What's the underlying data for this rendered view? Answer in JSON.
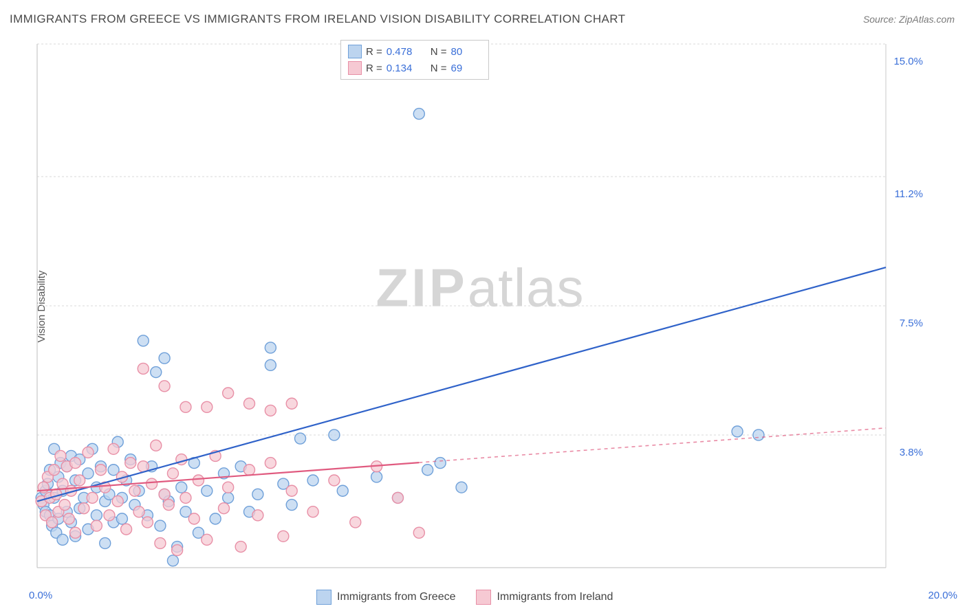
{
  "title": "IMMIGRANTS FROM GREECE VS IMMIGRANTS FROM IRELAND VISION DISABILITY CORRELATION CHART",
  "source": "Source: ZipAtlas.com",
  "ylabel": "Vision Disability",
  "watermark_bold": "ZIP",
  "watermark_rest": "atlas",
  "chart": {
    "type": "scatter-with-trendlines",
    "xlim": [
      0.0,
      20.0
    ],
    "ylim": [
      0.0,
      15.0
    ],
    "x_axis_left_label": "0.0%",
    "x_axis_right_label": "20.0%",
    "y_ticks": [
      3.8,
      7.5,
      11.2,
      15.0
    ],
    "y_tick_labels": [
      "3.8%",
      "7.5%",
      "11.2%",
      "15.0%"
    ],
    "grid_color": "#d9d9d9",
    "axis_color": "#c9c9c9",
    "label_color": "#3a6fd8",
    "background": "#ffffff",
    "marker_radius": 8,
    "marker_stroke_width": 1.4,
    "trend_width": 2.2,
    "series": [
      {
        "name": "Immigrants from Greece",
        "fill": "#bcd4ef",
        "stroke": "#6fa0d9",
        "trend_color": "#2f62c9",
        "R": "0.478",
        "N": "80",
        "trend": {
          "x1": 0.0,
          "y1": 1.9,
          "x2": 20.0,
          "y2": 8.6,
          "solid_until_x": 20.0
        },
        "points": [
          [
            0.1,
            2.0
          ],
          [
            0.15,
            1.8
          ],
          [
            0.2,
            2.2
          ],
          [
            0.2,
            1.6
          ],
          [
            0.25,
            2.4
          ],
          [
            0.3,
            1.5
          ],
          [
            0.3,
            2.8
          ],
          [
            0.35,
            1.2
          ],
          [
            0.4,
            3.4
          ],
          [
            0.4,
            2.0
          ],
          [
            0.45,
            1.0
          ],
          [
            0.5,
            2.6
          ],
          [
            0.5,
            1.4
          ],
          [
            0.55,
            3.0
          ],
          [
            0.6,
            2.2
          ],
          [
            0.6,
            0.8
          ],
          [
            0.7,
            2.9
          ],
          [
            0.7,
            1.6
          ],
          [
            0.8,
            3.2
          ],
          [
            0.8,
            1.3
          ],
          [
            0.9,
            2.5
          ],
          [
            0.9,
            0.9
          ],
          [
            1.0,
            3.1
          ],
          [
            1.0,
            1.7
          ],
          [
            1.1,
            2.0
          ],
          [
            1.2,
            2.7
          ],
          [
            1.2,
            1.1
          ],
          [
            1.3,
            3.4
          ],
          [
            1.4,
            2.3
          ],
          [
            1.4,
            1.5
          ],
          [
            1.5,
            2.9
          ],
          [
            1.6,
            1.9
          ],
          [
            1.6,
            0.7
          ],
          [
            1.7,
            2.1
          ],
          [
            1.8,
            2.8
          ],
          [
            1.8,
            1.3
          ],
          [
            1.9,
            3.6
          ],
          [
            2.0,
            2.0
          ],
          [
            2.0,
            1.4
          ],
          [
            2.1,
            2.5
          ],
          [
            2.2,
            3.1
          ],
          [
            2.3,
            1.8
          ],
          [
            2.4,
            2.2
          ],
          [
            2.5,
            6.5
          ],
          [
            2.6,
            1.5
          ],
          [
            2.7,
            2.9
          ],
          [
            2.8,
            5.6
          ],
          [
            2.9,
            1.2
          ],
          [
            3.0,
            2.1
          ],
          [
            3.0,
            6.0
          ],
          [
            3.1,
            1.9
          ],
          [
            3.2,
            0.2
          ],
          [
            3.3,
            0.6
          ],
          [
            3.4,
            2.3
          ],
          [
            3.5,
            1.6
          ],
          [
            3.7,
            3.0
          ],
          [
            3.8,
            1.0
          ],
          [
            4.0,
            2.2
          ],
          [
            4.2,
            1.4
          ],
          [
            4.4,
            2.7
          ],
          [
            4.5,
            2.0
          ],
          [
            4.8,
            2.9
          ],
          [
            5.0,
            1.6
          ],
          [
            5.2,
            2.1
          ],
          [
            5.5,
            6.3
          ],
          [
            5.5,
            5.8
          ],
          [
            5.8,
            2.4
          ],
          [
            6.0,
            1.8
          ],
          [
            6.2,
            3.7
          ],
          [
            6.5,
            2.5
          ],
          [
            7.0,
            3.8
          ],
          [
            7.2,
            2.2
          ],
          [
            8.0,
            2.6
          ],
          [
            8.5,
            2.0
          ],
          [
            9.0,
            13.0
          ],
          [
            9.2,
            2.8
          ],
          [
            9.5,
            3.0
          ],
          [
            10.0,
            2.3
          ],
          [
            16.5,
            3.9
          ],
          [
            17.0,
            3.8
          ]
        ]
      },
      {
        "name": "Immigrants from Ireland",
        "fill": "#f6c9d3",
        "stroke": "#e88fa6",
        "trend_color": "#e05a7f",
        "R": "0.134",
        "N": "69",
        "trend": {
          "x1": 0.0,
          "y1": 2.2,
          "x2": 20.0,
          "y2": 4.0,
          "solid_until_x": 9.0
        },
        "points": [
          [
            0.1,
            1.9
          ],
          [
            0.15,
            2.3
          ],
          [
            0.2,
            1.5
          ],
          [
            0.25,
            2.6
          ],
          [
            0.3,
            2.0
          ],
          [
            0.35,
            1.3
          ],
          [
            0.4,
            2.8
          ],
          [
            0.45,
            2.1
          ],
          [
            0.5,
            1.6
          ],
          [
            0.55,
            3.2
          ],
          [
            0.6,
            2.4
          ],
          [
            0.65,
            1.8
          ],
          [
            0.7,
            2.9
          ],
          [
            0.75,
            1.4
          ],
          [
            0.8,
            2.2
          ],
          [
            0.9,
            3.0
          ],
          [
            0.9,
            1.0
          ],
          [
            1.0,
            2.5
          ],
          [
            1.1,
            1.7
          ],
          [
            1.2,
            3.3
          ],
          [
            1.3,
            2.0
          ],
          [
            1.4,
            1.2
          ],
          [
            1.5,
            2.8
          ],
          [
            1.6,
            2.3
          ],
          [
            1.7,
            1.5
          ],
          [
            1.8,
            3.4
          ],
          [
            1.9,
            1.9
          ],
          [
            2.0,
            2.6
          ],
          [
            2.1,
            1.1
          ],
          [
            2.2,
            3.0
          ],
          [
            2.3,
            2.2
          ],
          [
            2.4,
            1.6
          ],
          [
            2.5,
            2.9
          ],
          [
            2.5,
            5.7
          ],
          [
            2.6,
            1.3
          ],
          [
            2.7,
            2.4
          ],
          [
            2.8,
            3.5
          ],
          [
            2.9,
            0.7
          ],
          [
            3.0,
            2.1
          ],
          [
            3.0,
            5.2
          ],
          [
            3.1,
            1.8
          ],
          [
            3.2,
            2.7
          ],
          [
            3.3,
            0.5
          ],
          [
            3.4,
            3.1
          ],
          [
            3.5,
            2.0
          ],
          [
            3.5,
            4.6
          ],
          [
            3.7,
            1.4
          ],
          [
            3.8,
            2.5
          ],
          [
            4.0,
            0.8
          ],
          [
            4.0,
            4.6
          ],
          [
            4.2,
            3.2
          ],
          [
            4.4,
            1.7
          ],
          [
            4.5,
            2.3
          ],
          [
            4.5,
            5.0
          ],
          [
            4.8,
            0.6
          ],
          [
            5.0,
            2.8
          ],
          [
            5.0,
            4.7
          ],
          [
            5.2,
            1.5
          ],
          [
            5.5,
            3.0
          ],
          [
            5.5,
            4.5
          ],
          [
            5.8,
            0.9
          ],
          [
            6.0,
            2.2
          ],
          [
            6.0,
            4.7
          ],
          [
            6.5,
            1.6
          ],
          [
            7.0,
            2.5
          ],
          [
            7.5,
            1.3
          ],
          [
            8.0,
            2.9
          ],
          [
            8.5,
            2.0
          ],
          [
            9.0,
            1.0
          ]
        ]
      }
    ]
  },
  "legend": {
    "series1": "Immigrants from Greece",
    "series2": "Immigrants from Ireland"
  },
  "statbox": {
    "r_label": "R =",
    "n_label": "N ="
  }
}
